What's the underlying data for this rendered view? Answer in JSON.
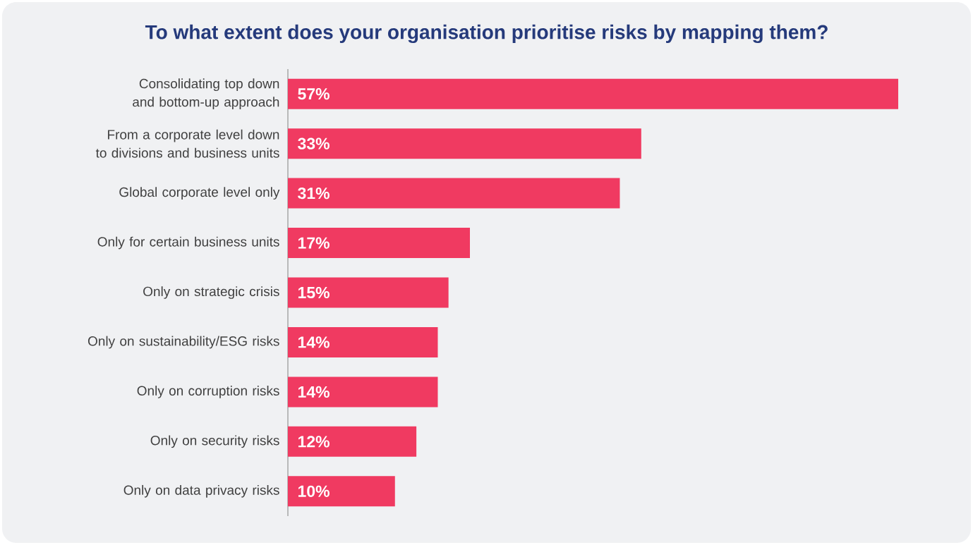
{
  "chart_data": {
    "type": "bar",
    "orientation": "horizontal",
    "title": "To what extent does your organisation prioritise risks by mapping them?",
    "categories": [
      "Consolidating top down and bottom-up approach",
      "From a corporate level down to divisions and business units",
      "Global corporate level only",
      "Only for certain business units",
      "Only on strategic crisis",
      "Only on sustainability/ESG risks",
      "Only on corruption risks",
      "Only on security risks",
      "Only on data privacy risks"
    ],
    "values": [
      57,
      33,
      31,
      17,
      15,
      14,
      14,
      12,
      10
    ],
    "value_labels": [
      "57%",
      "33%",
      "31%",
      "17%",
      "15%",
      "14%",
      "14%",
      "12%",
      "10%"
    ],
    "color": "#f03a61"
  }
}
